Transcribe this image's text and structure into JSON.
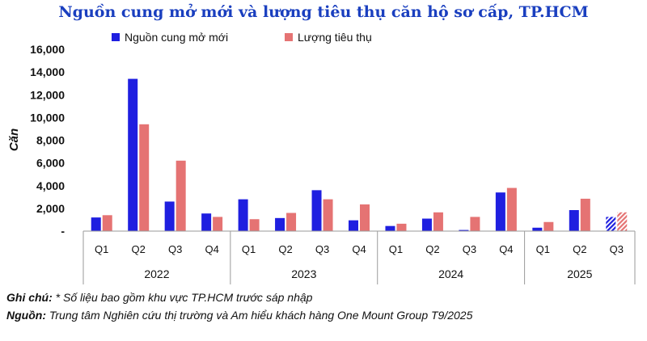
{
  "chart_data": {
    "type": "bar",
    "title": "Nguồn cung mở mới và lượng tiêu thụ căn hộ sơ cấp, TP.HCM",
    "ylabel": "Căn",
    "ylim": [
      0,
      16000
    ],
    "yticks": [
      "-",
      "2,000",
      "4,000",
      "6,000",
      "8,000",
      "10,000",
      "12,000",
      "14,000",
      "16,000"
    ],
    "grid": false,
    "legend_position": "top",
    "years": [
      {
        "label": "2022",
        "quarters": [
          "Q1",
          "Q2",
          "Q3",
          "Q4"
        ]
      },
      {
        "label": "2023",
        "quarters": [
          "Q1",
          "Q2",
          "Q3",
          "Q4"
        ]
      },
      {
        "label": "2024",
        "quarters": [
          "Q1",
          "Q2",
          "Q3",
          "Q4"
        ]
      },
      {
        "label": "2025",
        "quarters": [
          "Q1",
          "Q2",
          "Q3"
        ]
      }
    ],
    "series": [
      {
        "name": "Nguồn cung mở mới",
        "color": "#1f1fe0",
        "values": [
          1200,
          13400,
          2600,
          1550,
          2800,
          1150,
          3600,
          950,
          450,
          1100,
          100,
          3400,
          300,
          1850,
          1250
        ]
      },
      {
        "name": "Lượng tiêu thụ",
        "color": "#e57373",
        "values": [
          1400,
          9400,
          6200,
          1250,
          1050,
          1600,
          2800,
          2350,
          650,
          1650,
          1250,
          3800,
          800,
          2850,
          1650
        ]
      }
    ],
    "hatched_last": true
  },
  "notes": {
    "note_label": "Ghi chú:",
    "note_text": " * Số liệu bao gồm khu vực TP.HCM trước sáp nhập",
    "source_label": "Nguồn:",
    "source_text": " Trung tâm Nghiên cứu thị trường và Am hiểu khách hàng One Mount Group T9/2025"
  }
}
